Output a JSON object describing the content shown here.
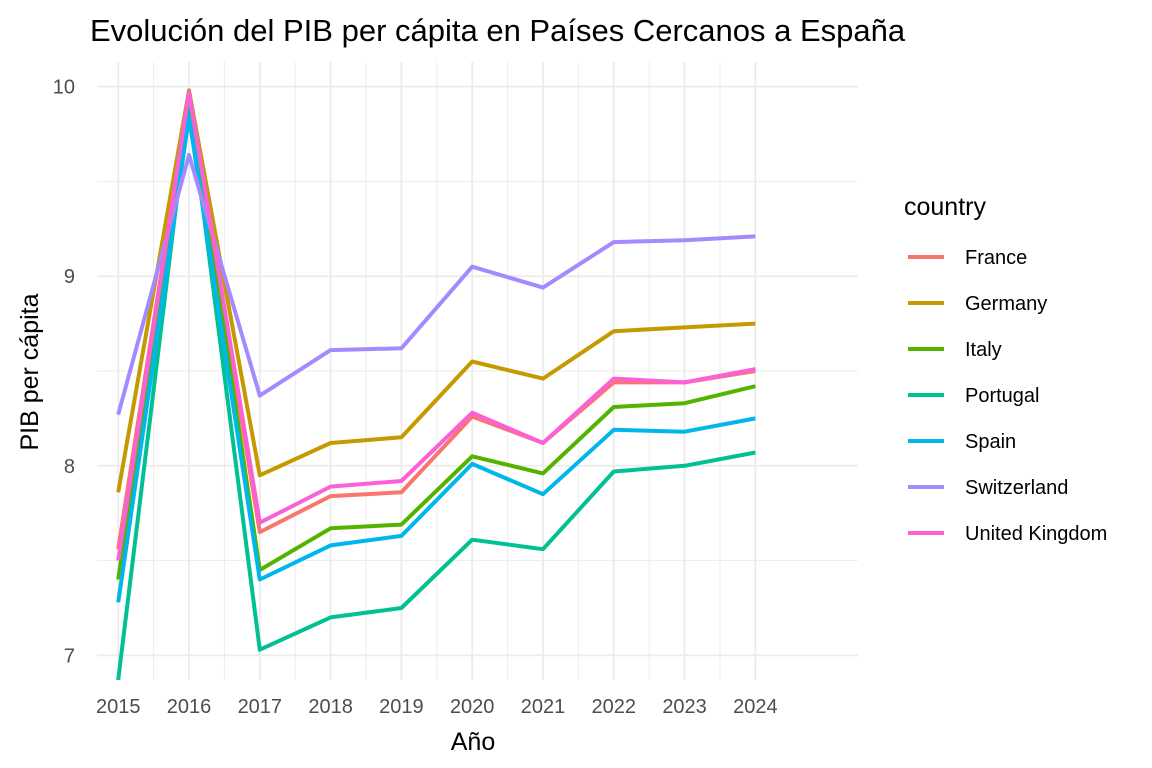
{
  "chart_data": {
    "type": "line",
    "title": "Evolución del PIB per cápita en Países Cercanos a España",
    "xlabel": "Año",
    "ylabel": "PIB per cápita",
    "x": [
      2015,
      2016,
      2017,
      2018,
      2019,
      2020,
      2021,
      2022,
      2023,
      2024
    ],
    "x_tick_labels": [
      "2015",
      "2016",
      "2017",
      "2018",
      "2019",
      "2020",
      "2021",
      "2022",
      "2023",
      "2024"
    ],
    "y_ticks": [
      7,
      8,
      9,
      10
    ],
    "y_tick_labels": [
      "7",
      "8",
      "9",
      "10"
    ],
    "xlim": [
      2014.7,
      2025.45
    ],
    "ylim": [
      6.87,
      10.13
    ],
    "grid": true,
    "legend": {
      "title": "country",
      "position": "right"
    },
    "series": [
      {
        "name": "France",
        "color": "#F8766D",
        "values": [
          7.56,
          9.95,
          7.65,
          7.84,
          7.86,
          8.26,
          8.12,
          8.44,
          8.44,
          8.5
        ]
      },
      {
        "name": "Germany",
        "color": "#C49A00",
        "values": [
          7.86,
          9.98,
          7.95,
          8.12,
          8.15,
          8.55,
          8.46,
          8.71,
          8.73,
          8.75
        ]
      },
      {
        "name": "Italy",
        "color": "#53B400",
        "values": [
          7.4,
          9.97,
          7.45,
          7.67,
          7.69,
          8.05,
          7.96,
          8.31,
          8.33,
          8.42
        ]
      },
      {
        "name": "Portugal",
        "color": "#00C094",
        "values": [
          6.87,
          9.93,
          7.03,
          7.2,
          7.25,
          7.61,
          7.56,
          7.97,
          8.0,
          8.07
        ]
      },
      {
        "name": "Spain",
        "color": "#00B6EB",
        "values": [
          7.28,
          9.84,
          7.4,
          7.58,
          7.63,
          8.01,
          7.85,
          8.19,
          8.18,
          8.25
        ]
      },
      {
        "name": "Switzerland",
        "color": "#A58AFF",
        "values": [
          8.27,
          9.64,
          8.37,
          8.61,
          8.62,
          9.05,
          8.94,
          9.18,
          9.19,
          9.21
        ]
      },
      {
        "name": "United Kingdom",
        "color": "#FB61D7",
        "values": [
          7.5,
          9.97,
          7.7,
          7.89,
          7.92,
          8.28,
          8.12,
          8.46,
          8.44,
          8.51
        ]
      }
    ]
  }
}
